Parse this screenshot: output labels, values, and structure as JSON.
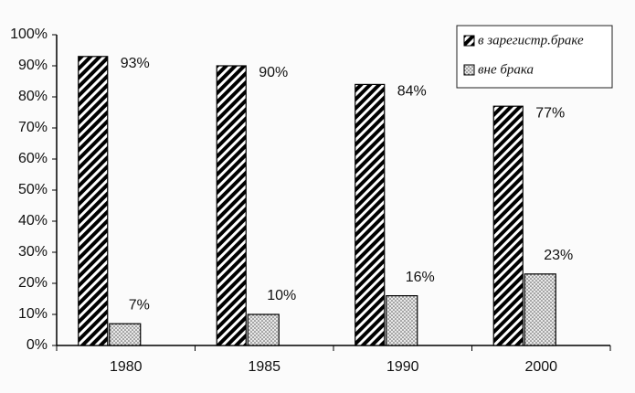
{
  "chart_data": {
    "type": "bar",
    "categories": [
      "1980",
      "1985",
      "1990",
      "2000"
    ],
    "series": [
      {
        "name": "в зарегистр.браке",
        "color": "#000000",
        "pattern": "diagonal",
        "values": [
          93,
          90,
          84,
          77
        ],
        "value_labels": [
          "93%",
          "90%",
          "84%",
          "77%"
        ]
      },
      {
        "name": "вне брака",
        "color": "#555555",
        "pattern": "dots",
        "values": [
          7,
          10,
          16,
          23
        ],
        "value_labels": [
          "7%",
          "10%",
          "16%",
          "23%"
        ]
      }
    ],
    "ylim": [
      0,
      100
    ],
    "yticks": [
      {
        "value": 0,
        "label": "0%"
      },
      {
        "value": 10,
        "label": "10%"
      },
      {
        "value": 20,
        "label": "20%"
      },
      {
        "value": 30,
        "label": "30%"
      },
      {
        "value": 40,
        "label": "40%"
      },
      {
        "value": 50,
        "label": "50%"
      },
      {
        "value": 60,
        "label": "60%"
      },
      {
        "value": 70,
        "label": "70%"
      },
      {
        "value": 80,
        "label": "80%"
      },
      {
        "value": 90,
        "label": "90%"
      },
      {
        "value": 100,
        "label": "100%"
      }
    ],
    "grid": false,
    "legend": "top-right"
  }
}
